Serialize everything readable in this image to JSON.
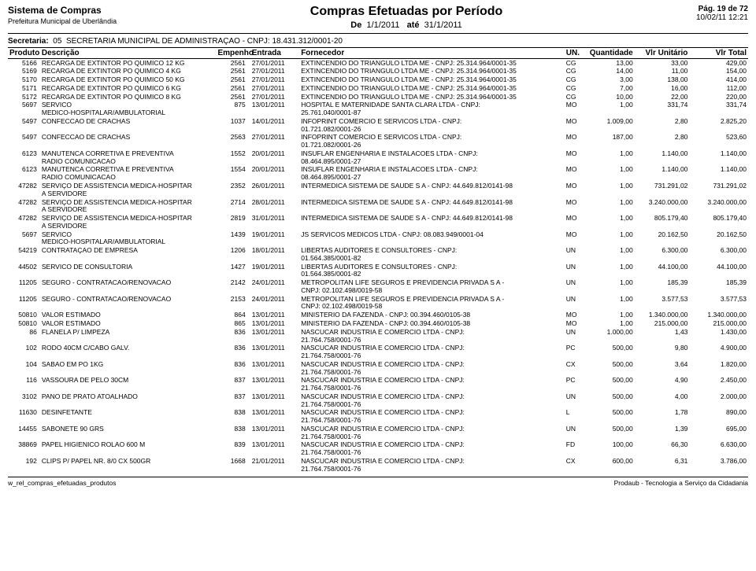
{
  "header": {
    "system": "Sistema de Compras",
    "prefecture": "Prefeitura Municipal de Uberlândia",
    "title": "Compras Efetuadas por Período",
    "period_label_from": "De",
    "period_from": "1/1/2011",
    "period_label_to": "até",
    "period_to": "31/1/2011",
    "page_label": "Pág. 19 de 72",
    "datetime": "10/02/11 12:21"
  },
  "secretaria": {
    "label": "Secretaria:",
    "code": "05",
    "name": "SECRETARIA MUNICIPAL DE ADMINISTRAÇAO  -  CNPJ: 18.431.312/0001-20"
  },
  "columns": {
    "produto": "Produto",
    "descricao": "Descrição",
    "empenho": "Empenho",
    "entrada": "Entrada",
    "fornecedor": "Fornecedor",
    "un": "UN.",
    "quantidade": "Quantidade",
    "vlr_unitario": "Vlr Unitário",
    "vlr_total": "Vlr Total"
  },
  "rows": [
    {
      "produto": "5166",
      "desc": "RECARGA DE EXTINTOR PO QUIMICO 12 KG",
      "emp": "2561",
      "ent": "27/01/2011",
      "forn": "EXTINCENDIO DO TRIANGULO LTDA ME  -  CNPJ: 25.314.964/0001-35",
      "un": "CG",
      "qtd": "13,00",
      "unit": "33,00",
      "tot": "429,00"
    },
    {
      "produto": "5169",
      "desc": "RECARGA DE EXTINTOR PO QUIMICO 4 KG",
      "emp": "2561",
      "ent": "27/01/2011",
      "forn": "EXTINCENDIO DO TRIANGULO LTDA ME  -  CNPJ: 25.314.964/0001-35",
      "un": "CG",
      "qtd": "14,00",
      "unit": "11,00",
      "tot": "154,00"
    },
    {
      "produto": "5170",
      "desc": "RECARGA DE EXTINTOR PO QUIMICO 50 KG",
      "emp": "2561",
      "ent": "27/01/2011",
      "forn": "EXTINCENDIO DO TRIANGULO LTDA ME  -  CNPJ: 25.314.964/0001-35",
      "un": "CG",
      "qtd": "3,00",
      "unit": "138,00",
      "tot": "414,00"
    },
    {
      "produto": "5171",
      "desc": "RECARGA DE EXTINTOR PO QUIMICO 6 KG",
      "emp": "2561",
      "ent": "27/01/2011",
      "forn": "EXTINCENDIO DO TRIANGULO LTDA ME  -  CNPJ: 25.314.964/0001-35",
      "un": "CG",
      "qtd": "7,00",
      "unit": "16,00",
      "tot": "112,00"
    },
    {
      "produto": "5172",
      "desc": "RECARGA DE EXTINTOR PO QUIMICO 8 KG",
      "emp": "2561",
      "ent": "27/01/2011",
      "forn": "EXTINCENDIO DO TRIANGULO LTDA ME  -  CNPJ: 25.314.964/0001-35",
      "un": "CG",
      "qtd": "10,00",
      "unit": "22,00",
      "tot": "220,00"
    },
    {
      "produto": "5697",
      "desc": "SERVICO",
      "desc2": "MEDICO-HOSPITALAR/AMBULATORIAL",
      "emp": "875",
      "ent": "13/01/2011",
      "forn": "HOSPITAL E MATERNIDADE SANTA CLARA LTDA  -  CNPJ:",
      "forn2": "25.761.040/0001-87",
      "un": "MO",
      "qtd": "1,00",
      "unit": "331,74",
      "tot": "331,74"
    },
    {
      "produto": "5497",
      "desc": "CONFECCAO DE CRACHAS",
      "emp": "1037",
      "ent": "14/01/2011",
      "forn": "INFOPRINT COMERCIO E SERVICOS LTDA  -  CNPJ:",
      "forn2": "01.721.082/0001-26",
      "un": "MO",
      "qtd": "1.009,00",
      "unit": "2,80",
      "tot": "2.825,20"
    },
    {
      "produto": "5497",
      "desc": "CONFECCAO DE CRACHAS",
      "emp": "2563",
      "ent": "27/01/2011",
      "forn": "INFOPRINT COMERCIO E SERVICOS LTDA  -  CNPJ:",
      "forn2": "01.721.082/0001-26",
      "un": "MO",
      "qtd": "187,00",
      "unit": "2,80",
      "tot": "523,60"
    },
    {
      "produto": "6123",
      "desc": "MANUTENCA CORRETIVA E PREVENTIVA",
      "desc2": "RADIO COMUNICACAO",
      "emp": "1552",
      "ent": "20/01/2011",
      "forn": "INSUFLAR ENGENHARIA E INSTALACOES LTDA  -  CNPJ:",
      "forn2": "08.464.895/0001-27",
      "un": "MO",
      "qtd": "1,00",
      "unit": "1.140,00",
      "tot": "1.140,00"
    },
    {
      "produto": "6123",
      "desc": "MANUTENCA CORRETIVA E PREVENTIVA",
      "desc2": "RADIO COMUNICACAO",
      "emp": "1554",
      "ent": "20/01/2011",
      "forn": "INSUFLAR ENGENHARIA E INSTALACOES LTDA  -  CNPJ:",
      "forn2": "08.464.895/0001-27",
      "un": "MO",
      "qtd": "1,00",
      "unit": "1.140,00",
      "tot": "1.140,00"
    },
    {
      "produto": "47282",
      "desc": "SERVIÇO DE ASSISTENCIA MEDICA-HOSPITAR",
      "desc2": "A SERVIDORE",
      "emp": "2352",
      "ent": "26/01/2011",
      "forn": "INTERMEDICA SISTEMA DE SAUDE S A  -  CNPJ: 44.649.812/0141-98",
      "un": "MO",
      "qtd": "1,00",
      "unit": "731.291,02",
      "tot": "731.291,02"
    },
    {
      "produto": "47282",
      "desc": "SERVIÇO DE ASSISTENCIA MEDICA-HOSPITAR",
      "desc2": "A SERVIDORE",
      "emp": "2714",
      "ent": "28/01/2011",
      "forn": "INTERMEDICA SISTEMA DE SAUDE S A  -  CNPJ: 44.649.812/0141-98",
      "un": "MO",
      "qtd": "1,00",
      "unit": "3.240.000,00",
      "tot": "3.240.000,00"
    },
    {
      "produto": "47282",
      "desc": "SERVIÇO DE ASSISTENCIA MEDICA-HOSPITAR",
      "desc2": "A SERVIDORE",
      "emp": "2819",
      "ent": "31/01/2011",
      "forn": "INTERMEDICA SISTEMA DE SAUDE S A  -  CNPJ: 44.649.812/0141-98",
      "un": "MO",
      "qtd": "1,00",
      "unit": "805.179,40",
      "tot": "805.179,40"
    },
    {
      "produto": "5697",
      "desc": "SERVICO",
      "desc2": "MEDICO-HOSPITALAR/AMBULATORIAL",
      "emp": "1439",
      "ent": "19/01/2011",
      "forn": "JS SERVICOS MEDICOS LTDA  -  CNPJ: 08.083.949/0001-04",
      "un": "MO",
      "qtd": "1,00",
      "unit": "20.162,50",
      "tot": "20.162,50"
    },
    {
      "produto": "54219",
      "desc": "CONTRATAÇAO DE EMPRESA",
      "emp": "1206",
      "ent": "18/01/2011",
      "forn": "LIBERTAS AUDITORES E CONSULTORES  -  CNPJ:",
      "forn2": "01.564.385/0001-82",
      "un": "UN",
      "qtd": "1,00",
      "unit": "6.300,00",
      "tot": "6.300,00"
    },
    {
      "produto": "44502",
      "desc": "SERVICO DE CONSULTORIA",
      "emp": "1427",
      "ent": "19/01/2011",
      "forn": "LIBERTAS AUDITORES E CONSULTORES  -  CNPJ:",
      "forn2": "01.564.385/0001-82",
      "un": "UN",
      "qtd": "1,00",
      "unit": "44.100,00",
      "tot": "44.100,00"
    },
    {
      "produto": "11205",
      "desc": "SEGURO - CONTRATACAO/RENOVACAO",
      "emp": "2142",
      "ent": "24/01/2011",
      "forn": "METROPOLITAN LIFE SEGUROS E PREVIDENCIA PRIVADA S A  -",
      "forn2": "CNPJ: 02.102.498/0019-58",
      "un": "UN",
      "qtd": "1,00",
      "unit": "185,39",
      "tot": "185,39"
    },
    {
      "produto": "11205",
      "desc": "SEGURO - CONTRATACAO/RENOVACAO",
      "emp": "2153",
      "ent": "24/01/2011",
      "forn": "METROPOLITAN LIFE SEGUROS E PREVIDENCIA PRIVADA S A  -",
      "forn2": "CNPJ: 02.102.498/0019-58",
      "un": "UN",
      "qtd": "1,00",
      "unit": "3.577,53",
      "tot": "3.577,53"
    },
    {
      "produto": "50810",
      "desc": "VALOR ESTIMADO",
      "emp": "864",
      "ent": "13/01/2011",
      "forn": "MINISTERIO DA FAZENDA  -  CNPJ: 00.394.460/0105-38",
      "un": "MO",
      "qtd": "1,00",
      "unit": "1.340.000,00",
      "tot": "1.340.000,00"
    },
    {
      "produto": "50810",
      "desc": "VALOR ESTIMADO",
      "emp": "865",
      "ent": "13/01/2011",
      "forn": "MINISTERIO DA FAZENDA  -  CNPJ: 00.394.460/0105-38",
      "un": "MO",
      "qtd": "1,00",
      "unit": "215.000,00",
      "tot": "215.000,00"
    },
    {
      "produto": "86",
      "desc": "FLANELA P/ LIMPEZA",
      "emp": "836",
      "ent": "13/01/2011",
      "forn": "NASCUCAR INDUSTRIA E COMERCIO LTDA  -  CNPJ:",
      "forn2": "21.764.758/0001-76",
      "un": "UN",
      "qtd": "1.000,00",
      "unit": "1,43",
      "tot": "1.430,00"
    },
    {
      "produto": "102",
      "desc": "RODO 40CM C/CABO GALV.",
      "emp": "836",
      "ent": "13/01/2011",
      "forn": "NASCUCAR INDUSTRIA E COMERCIO LTDA  -  CNPJ:",
      "forn2": "21.764.758/0001-76",
      "un": "PC",
      "qtd": "500,00",
      "unit": "9,80",
      "tot": "4.900,00"
    },
    {
      "produto": "104",
      "desc": "SABAO EM PO 1KG",
      "emp": "836",
      "ent": "13/01/2011",
      "forn": "NASCUCAR INDUSTRIA E COMERCIO LTDA  -  CNPJ:",
      "forn2": "21.764.758/0001-76",
      "un": "CX",
      "qtd": "500,00",
      "unit": "3,64",
      "tot": "1.820,00"
    },
    {
      "produto": "116",
      "desc": "VASSOURA DE PELO 30CM",
      "emp": "837",
      "ent": "13/01/2011",
      "forn": "NASCUCAR INDUSTRIA E COMERCIO LTDA  -  CNPJ:",
      "forn2": "21.764.758/0001-76",
      "un": "PC",
      "qtd": "500,00",
      "unit": "4,90",
      "tot": "2.450,00"
    },
    {
      "produto": "3102",
      "desc": "PANO DE PRATO ATOALHADO",
      "emp": "837",
      "ent": "13/01/2011",
      "forn": "NASCUCAR INDUSTRIA E COMERCIO LTDA  -  CNPJ:",
      "forn2": "21.764.758/0001-76",
      "un": "UN",
      "qtd": "500,00",
      "unit": "4,00",
      "tot": "2.000,00"
    },
    {
      "produto": "11630",
      "desc": "DESINFETANTE",
      "emp": "838",
      "ent": "13/01/2011",
      "forn": "NASCUCAR INDUSTRIA E COMERCIO LTDA  -  CNPJ:",
      "forn2": "21.764.758/0001-76",
      "un": "L",
      "qtd": "500,00",
      "unit": "1,78",
      "tot": "890,00"
    },
    {
      "produto": "14455",
      "desc": "SABONETE 90 GRS",
      "emp": "838",
      "ent": "13/01/2011",
      "forn": "NASCUCAR INDUSTRIA E COMERCIO LTDA  -  CNPJ:",
      "forn2": "21.764.758/0001-76",
      "un": "UN",
      "qtd": "500,00",
      "unit": "1,39",
      "tot": "695,00"
    },
    {
      "produto": "38869",
      "desc": "PAPEL HIGIENICO ROLAO 600 M",
      "emp": "839",
      "ent": "13/01/2011",
      "forn": "NASCUCAR INDUSTRIA E COMERCIO LTDA  -  CNPJ:",
      "forn2": "21.764.758/0001-76",
      "un": "FD",
      "qtd": "100,00",
      "unit": "66,30",
      "tot": "6.630,00"
    },
    {
      "produto": "192",
      "desc": "CLIPS P/ PAPEL NR. 8/0 CX 500GR",
      "emp": "1668",
      "ent": "21/01/2011",
      "forn": "NASCUCAR INDUSTRIA E COMERCIO LTDA  -  CNPJ:",
      "forn2": "21.764.758/0001-76",
      "un": "CX",
      "qtd": "600,00",
      "unit": "6,31",
      "tot": "3.786,00"
    }
  ],
  "footer": {
    "left": "w_rel_compras_efetuadas_produtos",
    "right": "Prodaub - Tecnologia a Serviço da Cidadania"
  }
}
